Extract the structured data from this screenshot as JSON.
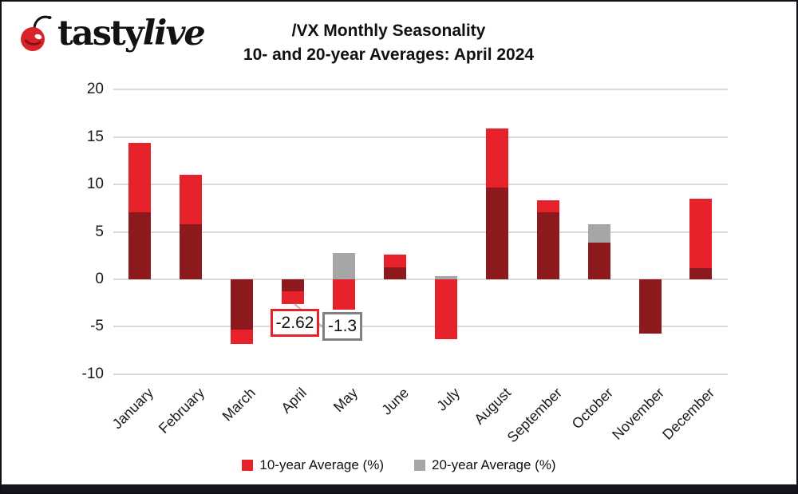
{
  "header": {
    "logo_regular": "tasty",
    "logo_italic": "live",
    "brand_color": "#d8232a",
    "title_line1": "/VX Monthly Seasonality",
    "title_line2": "10- and 20-year Averages: April 2024"
  },
  "chart_data": {
    "type": "bar",
    "title": "/VX Monthly Seasonality 10- and 20-year Averages: April 2024",
    "categories": [
      "January",
      "February",
      "March",
      "April",
      "May",
      "June",
      "July",
      "August",
      "September",
      "October",
      "November",
      "December"
    ],
    "series": [
      {
        "name": "10-year Average (%)",
        "color": "#e7222b",
        "values": [
          14.4,
          11.0,
          -6.8,
          -2.62,
          -3.2,
          2.6,
          -6.3,
          15.9,
          8.3,
          3.9,
          -5.7,
          8.5
        ]
      },
      {
        "name": "20-year Average (%)",
        "color": "#a6a6a6",
        "values": [
          7.1,
          5.8,
          -5.3,
          -1.3,
          2.8,
          1.3,
          0.3,
          9.7,
          7.1,
          5.8,
          -5.7,
          1.2
        ]
      }
    ],
    "overlap_color": "#8b191d",
    "xlabel": "",
    "ylabel": "",
    "y_ticks": [
      20,
      15,
      10,
      5,
      0,
      -5,
      -10
    ],
    "ylim": [
      -10,
      20
    ],
    "grid": true,
    "gridline_color": "#d9d9d9",
    "legend_position": "bottom",
    "annotations": [
      {
        "text": "-2.62",
        "month": "April",
        "series": "10-year Average (%)",
        "border_color": "#e7222b"
      },
      {
        "text": "-1.3",
        "month": "April",
        "series": "20-year Average (%)",
        "border_color": "#808080"
      }
    ]
  }
}
